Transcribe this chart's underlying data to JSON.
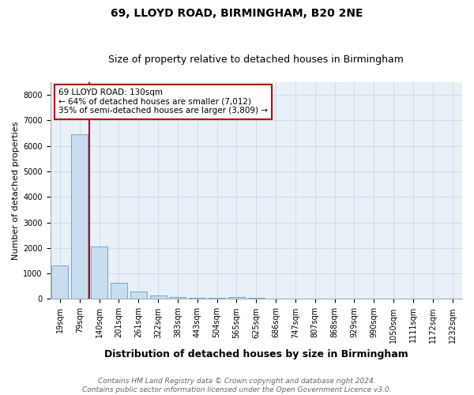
{
  "title": "69, LLOYD ROAD, BIRMINGHAM, B20 2NE",
  "subtitle": "Size of property relative to detached houses in Birmingham",
  "xlabel": "Distribution of detached houses by size in Birmingham",
  "ylabel": "Number of detached properties",
  "categories": [
    "19sqm",
    "79sqm",
    "140sqm",
    "201sqm",
    "261sqm",
    "322sqm",
    "383sqm",
    "443sqm",
    "504sqm",
    "565sqm",
    "625sqm",
    "686sqm",
    "747sqm",
    "807sqm",
    "868sqm",
    "929sqm",
    "990sqm",
    "1050sqm",
    "1111sqm",
    "1172sqm",
    "1232sqm"
  ],
  "values": [
    1300,
    6450,
    2070,
    630,
    280,
    130,
    90,
    55,
    40,
    70,
    50,
    0,
    0,
    0,
    0,
    0,
    0,
    0,
    0,
    0,
    0
  ],
  "bar_color": "#c9ddf0",
  "bar_edge_color": "#6aaad4",
  "vline_color": "#c00000",
  "annotation_text": "69 LLOYD ROAD: 130sqm\n← 64% of detached houses are smaller (7,012)\n35% of semi-detached houses are larger (3,809) →",
  "annotation_box_color": "#ffffff",
  "annotation_box_edge": "#c00000",
  "ylim": [
    0,
    8500
  ],
  "yticks": [
    0,
    1000,
    2000,
    3000,
    4000,
    5000,
    6000,
    7000,
    8000
  ],
  "grid_color": "#d0dce8",
  "background_color": "#e8f0f8",
  "footer": "Contains HM Land Registry data © Crown copyright and database right 2024.\nContains public sector information licensed under the Open Government Licence v3.0.",
  "title_fontsize": 10,
  "subtitle_fontsize": 9,
  "xlabel_fontsize": 9,
  "ylabel_fontsize": 8,
  "tick_fontsize": 7,
  "annotation_fontsize": 7.5,
  "footer_fontsize": 6.5
}
